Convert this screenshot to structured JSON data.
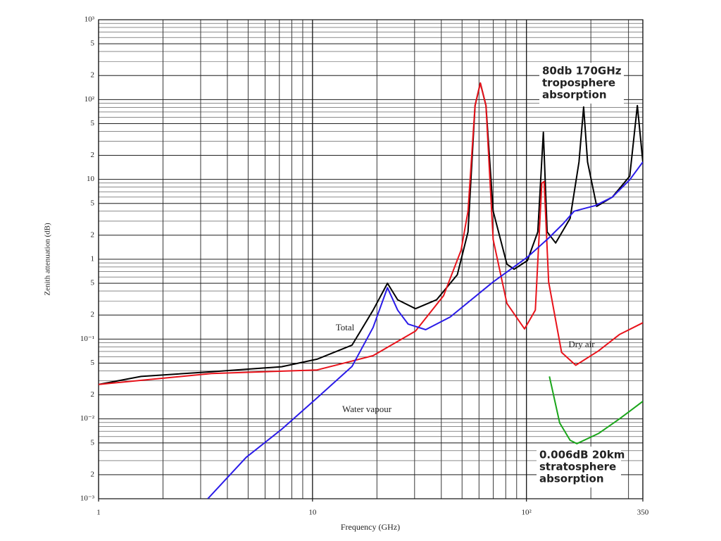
{
  "chart_data": {
    "type": "line",
    "x_label": "Frequency (GHz)",
    "y_label": "Zenith attenuation (dB)",
    "xscale": "log",
    "yscale": "log",
    "grid": true,
    "xlim": [
      1,
      350
    ],
    "ylim": [
      0.001,
      1000
    ],
    "xticks": [
      1,
      10,
      {
        "value": 100,
        "label": "10²"
      },
      350
    ],
    "yticks": [
      {
        "value": 1000,
        "label": "10³"
      },
      {
        "value": 500,
        "label": "5"
      },
      {
        "value": 200,
        "label": "2"
      },
      {
        "value": 100,
        "label": "10²"
      },
      {
        "value": 50,
        "label": "5"
      },
      {
        "value": 20,
        "label": "2"
      },
      10,
      5,
      2,
      1,
      {
        "value": 0.5,
        "label": "5"
      },
      {
        "value": 0.2,
        "label": "2"
      },
      {
        "value": 0.1,
        "label": "10⁻¹"
      },
      {
        "value": 0.05,
        "label": "5"
      },
      {
        "value": 0.02,
        "label": "2"
      },
      {
        "value": 0.01,
        "label": "10⁻²"
      },
      {
        "value": 0.005,
        "label": "5"
      },
      {
        "value": 0.002,
        "label": "2"
      },
      {
        "value": 0.001,
        "label": "10⁻³"
      }
    ],
    "series": [
      {
        "name": "Total",
        "color": "#000000",
        "x": [
          1,
          1.58,
          3.37,
          7.17,
          10.5,
          15.3,
          19.2,
          22.4,
          25,
          30.3,
          38,
          47.5,
          53.3,
          57.5,
          60.9,
          64.7,
          69.9,
          81,
          87.5,
          101,
          113,
          120,
          125,
          137,
          160,
          176,
          185,
          193,
          213,
          252,
          304,
          330,
          350
        ],
        "values": [
          0.027,
          0.034,
          0.039,
          0.045,
          0.056,
          0.084,
          0.23,
          0.5,
          0.31,
          0.24,
          0.31,
          0.64,
          2.2,
          84,
          161,
          84,
          4.0,
          0.87,
          0.75,
          0.96,
          2.2,
          39,
          2.2,
          1.6,
          3.25,
          16.5,
          80.6,
          16.5,
          4.6,
          6.0,
          11,
          84,
          16.5
        ]
      },
      {
        "name": "Dry air",
        "color": "#e8131b",
        "x": [
          1,
          3.37,
          10.5,
          19.2,
          30.3,
          41,
          49.5,
          53.3,
          57.5,
          60.9,
          64.7,
          69.9,
          81,
          98,
          110,
          118,
          121,
          127,
          146,
          170,
          217,
          272,
          350
        ],
        "values": [
          0.027,
          0.037,
          0.041,
          0.062,
          0.126,
          0.35,
          1.3,
          4.0,
          84,
          161,
          84,
          1.77,
          0.28,
          0.134,
          0.23,
          9,
          9.4,
          0.52,
          0.068,
          0.047,
          0.071,
          0.114,
          0.16
        ]
      },
      {
        "name": "Water vapour",
        "color": "#2a1be8",
        "x": [
          3.24,
          4.9,
          7.17,
          10.5,
          15.3,
          19.2,
          22.4,
          25,
          28,
          33.8,
          44,
          69.9,
          101,
          127,
          148,
          167,
          210,
          252,
          304,
          350
        ],
        "values": [
          0.001,
          0.0033,
          0.0074,
          0.0183,
          0.0455,
          0.14,
          0.44,
          0.23,
          0.154,
          0.131,
          0.189,
          0.52,
          1.06,
          1.84,
          2.76,
          4.0,
          4.7,
          6.0,
          9.9,
          16.5
        ]
      },
      {
        "color": "#1aa51a",
        "x": [
          128,
          143,
          160,
          172,
          218,
          272,
          350
        ],
        "values": [
          0.034,
          0.0089,
          0.0054,
          0.0049,
          0.0066,
          0.01,
          0.0166
        ]
      }
    ],
    "annotations": [
      {
        "lines": [
          "80db 170GHz",
          "troposphere",
          "absorption"
        ],
        "color": "#000000"
      },
      {
        "lines": [
          "0.006dB 20km",
          "stratosphere",
          "absorption"
        ],
        "color": "#1aa51a"
      }
    ]
  }
}
